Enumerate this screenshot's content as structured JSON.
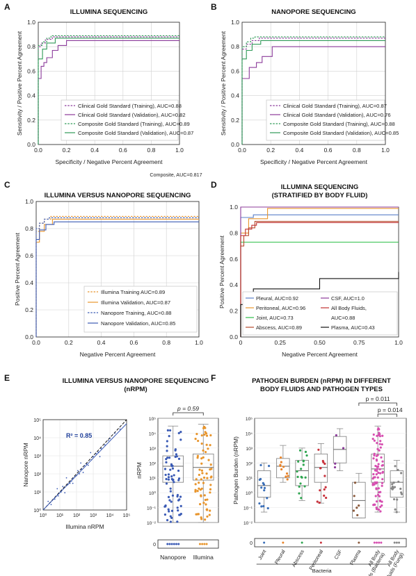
{
  "colors": {
    "clinical": "#8b3a9a",
    "composite": "#2f9a57",
    "illumina": "#e8952c",
    "nanopore": "#3b5bb5",
    "pleural": "#e8952c",
    "peritoneal": "#e8952c",
    "joint": "#2fbf4a",
    "abscess": "#b64a2c",
    "csf": "#8b3a9a",
    "allbf": "#c03030",
    "plasma": "#111111",
    "pleural_d": "#5a7fc8",
    "box_joint": "#3b6fb8",
    "box_pleural": "#e8852c",
    "box_abscess": "#2fa550",
    "box_peritoneal": "#c8323c",
    "box_csf": "#8b3a9a",
    "box_plasma": "#8b5a3c",
    "box_allbac": "#d64fb0",
    "box_fungi": "#888888",
    "r2_text": "#1f3f9a"
  },
  "panel_letters": [
    "A",
    "B",
    "C",
    "D",
    "E",
    "F"
  ],
  "chart_data": [
    {
      "id": "A",
      "type": "line",
      "title": "ILLUMINA SEQUENCING",
      "xlabel": "Specificity / Negative Percent Agreement",
      "ylabel": "Sensitivity / Positive Percent Agreement",
      "xlim": [
        0,
        1
      ],
      "ylim": [
        0,
        1
      ],
      "xticks": [
        "0.0",
        "0.2",
        "0.4",
        "0.6",
        "0.8",
        "1.0"
      ],
      "yticks": [
        "0.0",
        "0.2",
        "0.4",
        "0.6",
        "0.8",
        "1.0"
      ],
      "grid": true,
      "legend_position": "bottom-right",
      "series": [
        {
          "name": "Clinical Gold Standard (Training), AUC=0.88",
          "color_key": "clinical",
          "dash": true,
          "x": [
            0,
            0,
            0.02,
            0.02,
            0.05,
            0.05,
            0.1,
            0.1,
            1
          ],
          "y": [
            0,
            0.8,
            0.8,
            0.83,
            0.83,
            0.86,
            0.86,
            0.88,
            0.88
          ]
        },
        {
          "name": "Clinical Gold Standard (Validation), AUC=0.82",
          "color_key": "clinical",
          "dash": false,
          "x": [
            0,
            0,
            0.02,
            0.02,
            0.04,
            0.04,
            0.06,
            0.06,
            0.1,
            0.1,
            0.14,
            0.14,
            0.2,
            0.2,
            1
          ],
          "y": [
            0,
            0.54,
            0.54,
            0.64,
            0.64,
            0.67,
            0.67,
            0.71,
            0.71,
            0.77,
            0.77,
            0.81,
            0.81,
            0.85,
            0.85
          ]
        },
        {
          "name": "Composite Gold Standard (Training), AUC=0.89",
          "color_key": "composite",
          "dash": true,
          "x": [
            0,
            0,
            0.03,
            0.03,
            0.06,
            0.06,
            0.09,
            0.09,
            1
          ],
          "y": [
            0,
            0.81,
            0.81,
            0.84,
            0.84,
            0.87,
            0.87,
            0.89,
            0.89
          ]
        },
        {
          "name": "Composite Gold Standard (Validation), AUC=0.87",
          "color_key": "composite",
          "dash": false,
          "x": [
            0,
            0,
            0.03,
            0.03,
            0.06,
            0.06,
            0.12,
            0.12,
            1
          ],
          "y": [
            0,
            0.7,
            0.7,
            0.78,
            0.78,
            0.83,
            0.83,
            0.87,
            0.87
          ]
        }
      ]
    },
    {
      "id": "B",
      "type": "line",
      "title": "NANOPORE SEQUENCING",
      "xlabel": "Specificity / Negative Percent Agreement",
      "ylabel": "Sensitivity / Positive Percent Agreement",
      "xlim": [
        0,
        1
      ],
      "ylim": [
        0,
        1
      ],
      "xticks": [
        "0.0",
        "0.2",
        "0.4",
        "0.6",
        "0.8",
        "1.0"
      ],
      "yticks": [
        "0.0",
        "0.2",
        "0.4",
        "0.6",
        "0.8",
        "1.0"
      ],
      "grid": true,
      "legend_position": "bottom-right",
      "series": [
        {
          "name": "Clinical Gold Standard (Training), AUC=0.87",
          "color_key": "clinical",
          "dash": true,
          "x": [
            0,
            0,
            0.03,
            0.03,
            0.07,
            0.07,
            0.12,
            0.12,
            1
          ],
          "y": [
            0,
            0.78,
            0.78,
            0.82,
            0.82,
            0.85,
            0.85,
            0.87,
            0.87
          ]
        },
        {
          "name": "Clinical Gold Standard (Validation), AUC=0.76",
          "color_key": "clinical",
          "dash": false,
          "x": [
            0,
            0,
            0.05,
            0.05,
            0.1,
            0.1,
            0.14,
            0.14,
            0.21,
            0.21,
            1
          ],
          "y": [
            0,
            0.54,
            0.54,
            0.63,
            0.63,
            0.67,
            0.67,
            0.72,
            0.72,
            0.8,
            0.8
          ]
        },
        {
          "name": "Composite Gold Standard (Training), AUC=0.88",
          "color_key": "composite",
          "dash": true,
          "x": [
            0,
            0,
            0.03,
            0.03,
            0.06,
            0.06,
            0.09,
            0.09,
            1
          ],
          "y": [
            0,
            0.8,
            0.8,
            0.84,
            0.84,
            0.87,
            0.87,
            0.88,
            0.88
          ]
        },
        {
          "name": "Composite Gold Standard (Validation), AUC=0.85",
          "color_key": "composite",
          "dash": false,
          "x": [
            0,
            0,
            0.03,
            0.03,
            0.07,
            0.07,
            0.13,
            0.13,
            1
          ],
          "y": [
            0,
            0.7,
            0.7,
            0.77,
            0.77,
            0.82,
            0.82,
            0.85,
            0.85
          ]
        }
      ]
    },
    {
      "id": "C",
      "type": "line",
      "title": "ILLUMINA VERSUS NANOPORE SEQUENCING",
      "xlabel": "Negative Percent Agreement",
      "ylabel": "Positive Percent Agreement",
      "xlim": [
        0,
        1
      ],
      "ylim": [
        0,
        1
      ],
      "xticks": [
        "0.0",
        "0.2",
        "0.4",
        "0.6",
        "0.8",
        "1.0"
      ],
      "yticks": [
        "0.0",
        "0.2",
        "0.4",
        "0.6",
        "0.8",
        "1.0"
      ],
      "grid": true,
      "legend_position": "bottom-right",
      "series": [
        {
          "name": "Illumina Training AUC=0.89",
          "color_key": "illumina",
          "dash": true,
          "x": [
            0,
            0,
            0.02,
            0.02,
            0.05,
            0.05,
            0.09,
            0.09,
            1
          ],
          "y": [
            0,
            0.78,
            0.78,
            0.84,
            0.84,
            0.87,
            0.87,
            0.89,
            0.89
          ]
        },
        {
          "name": "Illumina Validation, AUC=0.87",
          "color_key": "illumina",
          "dash": false,
          "x": [
            0,
            0,
            0.02,
            0.02,
            0.05,
            0.05,
            0.1,
            0.1,
            1
          ],
          "y": [
            0,
            0.7,
            0.7,
            0.78,
            0.78,
            0.83,
            0.83,
            0.87,
            0.87
          ]
        },
        {
          "name": "Nanopore Training, AUC=0.88",
          "color_key": "nanopore",
          "dash": true,
          "x": [
            0,
            0,
            0.02,
            0.02,
            0.05,
            0.05,
            0.08,
            0.08,
            1
          ],
          "y": [
            0,
            0.8,
            0.8,
            0.84,
            0.84,
            0.87,
            0.87,
            0.88,
            0.88
          ]
        },
        {
          "name": "Nanopore Validation, AUC=0.85",
          "color_key": "nanopore",
          "dash": false,
          "x": [
            0,
            0,
            0.02,
            0.02,
            0.06,
            0.06,
            0.11,
            0.11,
            1
          ],
          "y": [
            0,
            0.72,
            0.72,
            0.79,
            0.79,
            0.83,
            0.83,
            0.85,
            0.85
          ]
        }
      ],
      "annotation": "Composite, AUC=0.817"
    },
    {
      "id": "D",
      "type": "line",
      "title": "ILLUMINA SEQUENCING",
      "subtitle": "(STRATIFIED BY BODY FLUID)",
      "xlabel": "Negative Percent Agreement",
      "ylabel": "Positive Percent Agreement",
      "xlim": [
        0,
        1
      ],
      "ylim": [
        0,
        1
      ],
      "xticks": [
        "0",
        "0.25",
        "0.50",
        "0.75",
        "1.0"
      ],
      "yticks": [
        "0.0",
        "0.2",
        "0.4",
        "0.6",
        "0.8",
        "1.0"
      ],
      "grid": false,
      "legend_position": "bottom-right",
      "series": [
        {
          "name": "Pleural, AUC=0.92",
          "color_key": "pleural_d",
          "x": [
            0,
            0,
            0.08,
            0.08,
            1
          ],
          "y": [
            0,
            0.92,
            0.92,
            0.94,
            0.94
          ]
        },
        {
          "name": "Peritoneal, AUC=0.96",
          "color_key": "pleural",
          "x": [
            0,
            0,
            0.05,
            0.05,
            0.17,
            0.17,
            1
          ],
          "y": [
            0,
            0.8,
            0.8,
            0.91,
            0.91,
            0.99,
            0.99
          ]
        },
        {
          "name": "Joint, AUC=0.73",
          "color_key": "joint",
          "x": [
            0,
            0,
            1
          ],
          "y": [
            0,
            0.73,
            0.73
          ]
        },
        {
          "name": "Abscess, AUC=0.89",
          "color_key": "abscess",
          "x": [
            0,
            0,
            0.02,
            0.02,
            0.05,
            0.05,
            0.09,
            0.09,
            1
          ],
          "y": [
            0,
            0.7,
            0.7,
            0.78,
            0.78,
            0.84,
            0.84,
            0.89,
            0.89
          ]
        },
        {
          "name": "CSF, AUC=1.0",
          "color_key": "csf",
          "x": [
            0,
            0,
            1
          ],
          "y": [
            0,
            1.0,
            1.0
          ]
        },
        {
          "name": "All Body Fluids, AUC=0.88",
          "color_key": "allbf",
          "x": [
            0,
            0,
            0.03,
            0.03,
            0.07,
            0.07,
            0.1,
            0.1,
            1
          ],
          "y": [
            0,
            0.78,
            0.78,
            0.83,
            0.83,
            0.86,
            0.86,
            0.88,
            0.88
          ]
        },
        {
          "name": "Plasma, AUC=0.43",
          "color_key": "plasma",
          "x": [
            0,
            0,
            0.08,
            0.08,
            0.5,
            0.5,
            1,
            1
          ],
          "y": [
            0,
            0.25,
            0.25,
            0.37,
            0.37,
            0.45,
            0.45,
            0.5
          ]
        }
      ],
      "legend_ordered": [
        "Pleural, AUC=0.92",
        "CSF, AUC=1.0",
        "Peritoneal, AUC=0.96",
        "All Body Fluids,",
        "Joint, AUC=0.73",
        "AUC=0.88",
        "Abscess, AUC=0.89",
        "Plasma, AUC=0.43"
      ]
    },
    {
      "id": "E",
      "type": "scatter",
      "title": "ILLUMINA VERSUS NANOPORE SEQUENCING",
      "subtitle": "(nRPM)",
      "xlabel": "Illumina nRPM",
      "ylabel": "Nanopore nRPM",
      "xscale": "log",
      "yscale": "log",
      "xlim": [
        1,
        100000
      ],
      "ylim": [
        1,
        100000
      ],
      "xticks": [
        "10⁰",
        "10¹",
        "10²",
        "10³",
        "10⁴",
        "10⁵"
      ],
      "yticks": [
        "10⁰",
        "10¹",
        "10²",
        "10³",
        "10⁴",
        "10⁵"
      ],
      "r2_label": "R² = 0.85",
      "points": [
        [
          3,
          2
        ],
        [
          5,
          4
        ],
        [
          8,
          6
        ],
        [
          12,
          10
        ],
        [
          15,
          20
        ],
        [
          20,
          9
        ],
        [
          30,
          25
        ],
        [
          40,
          30
        ],
        [
          50,
          40
        ],
        [
          60,
          55
        ],
        [
          80,
          70
        ],
        [
          100,
          80
        ],
        [
          120,
          150
        ],
        [
          150,
          100
        ],
        [
          200,
          180
        ],
        [
          250,
          120
        ],
        [
          300,
          280
        ],
        [
          400,
          350
        ],
        [
          500,
          300
        ],
        [
          800,
          600
        ],
        [
          1000,
          900
        ],
        [
          1500,
          1300
        ],
        [
          2000,
          1600
        ],
        [
          3000,
          2500
        ],
        [
          5000,
          4000
        ],
        [
          8000,
          7000
        ],
        [
          10000,
          9000
        ],
        [
          20000,
          18000
        ],
        [
          40000,
          30000
        ],
        [
          2,
          3
        ],
        [
          7,
          15
        ],
        [
          25,
          60
        ],
        [
          60,
          30
        ],
        [
          180,
          400
        ],
        [
          700,
          1500
        ],
        [
          2500,
          900
        ]
      ]
    },
    {
      "id": "E2",
      "type": "box",
      "ylabel": "nRPM",
      "yscale": "log",
      "yticks": [
        "10⁵",
        "10⁴",
        "10³",
        "10²",
        "10¹",
        "10⁰",
        "10⁻¹",
        "10⁻²"
      ],
      "categories": [
        "Nanopore",
        "Illumina"
      ],
      "p_label": "p = 0.59",
      "boxes": [
        {
          "name": "Nanopore",
          "color_key": "nanopore",
          "q1": 5,
          "median": 60,
          "q3": 300,
          "whislo": 0.01,
          "whishi": 30000
        },
        {
          "name": "Illumina",
          "color_key": "illumina",
          "q1": 7,
          "median": 50,
          "q3": 400,
          "whislo": 0.01,
          "whishi": 40000
        }
      ],
      "zero_label": "0"
    },
    {
      "id": "F",
      "type": "box",
      "title": "PATHOGEN BURDEN (nRPM) IN DIFFERENT",
      "subtitle": "BODY FLUIDS  AND PATHOGEN TYPES",
      "ylabel": "Pathogen Burden (nRPM)",
      "yscale": "log",
      "yticks": [
        "10⁵",
        "10⁴",
        "10³",
        "10²",
        "10¹",
        "10⁰",
        "10⁻¹",
        "10⁻²"
      ],
      "categories": [
        "Joint",
        "Pleural",
        "Abscess",
        "Peritoneal",
        "CSF",
        "Plasma",
        "All Body Fluids (Bacteria)",
        "All Body Fluids (Fungi)"
      ],
      "category_lines": [
        [
          "Joint"
        ],
        [
          "Pleural"
        ],
        [
          "Abscess"
        ],
        [
          "Peritoneal"
        ],
        [
          "CSF"
        ],
        [
          "Plasma"
        ],
        [
          "All Body",
          "Fluids (Bacteria)"
        ],
        [
          "All Body",
          "Fluids (Fungi)"
        ]
      ],
      "group_label": "Bacteria",
      "p_labels": [
        "p = 0.011",
        "p = 0.014"
      ],
      "boxes": [
        {
          "name": "Joint",
          "color_key": "box_joint",
          "q1": 0.5,
          "median": 3,
          "q3": 30,
          "whislo": 0.05,
          "whishi": 100
        },
        {
          "name": "Pleural",
          "color_key": "box_pleural",
          "q1": 10,
          "median": 60,
          "q3": 200,
          "whislo": 5,
          "whishi": 1500
        },
        {
          "name": "Abscess",
          "color_key": "box_abscess",
          "q1": 3,
          "median": 30,
          "q3": 150,
          "whislo": 0.3,
          "whishi": 1000
        },
        {
          "name": "Peritoneal",
          "color_key": "box_peritoneal",
          "q1": 5,
          "median": 50,
          "q3": 400,
          "whislo": 0.2,
          "whishi": 2000
        },
        {
          "name": "CSF",
          "color_key": "box_csf",
          "q1": 100,
          "median": 800,
          "q3": 6000,
          "whislo": 30,
          "whishi": 20000
        },
        {
          "name": "Plasma",
          "color_key": "box_plasma",
          "q1": 0.02,
          "median": 0.3,
          "q3": 5,
          "whislo": 0.02,
          "whishi": 20
        },
        {
          "name": "All Body Fluids (Bacteria)",
          "color_key": "box_allbac",
          "q1": 5,
          "median": 40,
          "q3": 400,
          "whislo": 0.05,
          "whishi": 30000
        },
        {
          "name": "All Body Fluids (Fungi)",
          "color_key": "box_fungi",
          "q1": 0.5,
          "median": 5,
          "q3": 30,
          "whislo": 0.05,
          "whishi": 150
        }
      ],
      "zero_label": "0"
    }
  ]
}
